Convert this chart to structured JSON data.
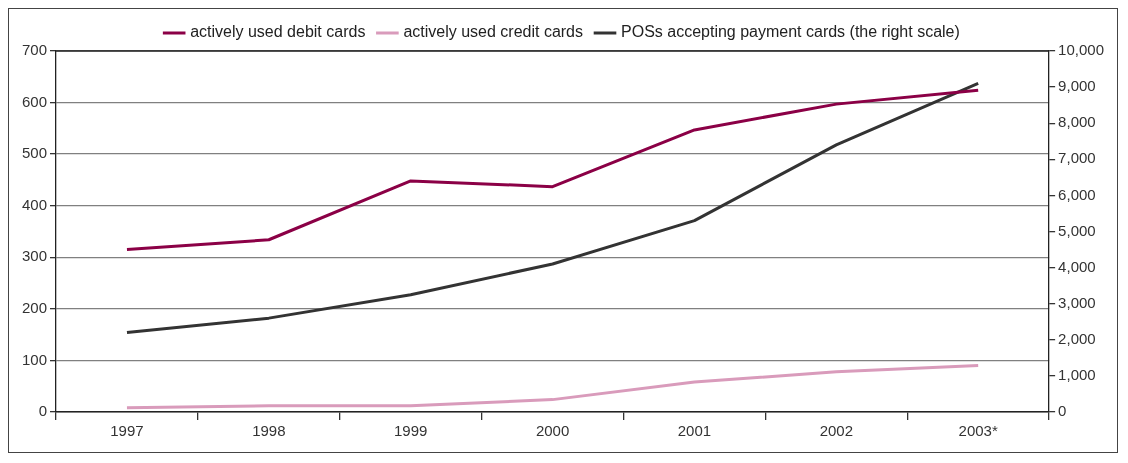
{
  "chart_data": {
    "type": "line",
    "categories": [
      "1997",
      "1998",
      "1999",
      "2000",
      "2001",
      "2002",
      "2003*"
    ],
    "series": [
      {
        "name": "actively used debit cards",
        "color": "#8b0046",
        "values": [
          315,
          334,
          448,
          437,
          547,
          597,
          624
        ]
      },
      {
        "name": "actively used credit cards",
        "color": "#d99bbb",
        "values": [
          8,
          12,
          12,
          24,
          58,
          78,
          90
        ]
      },
      {
        "name": "POSs accepting payment cards (the right scale)",
        "color": "#333333",
        "axis": "y2",
        "values": [
          2200,
          2600,
          3250,
          4100,
          5300,
          7400,
          9100
        ]
      }
    ],
    "ylim": [
      0,
      700
    ],
    "yticks": [
      0,
      100,
      200,
      300,
      400,
      500,
      600,
      700
    ],
    "y2lim": [
      0,
      10000
    ],
    "y2ticks": [
      {
        "value": 0,
        "label": "0"
      },
      {
        "value": 1000,
        "label": "1,000"
      },
      {
        "value": 2000,
        "label": "2,000"
      },
      {
        "value": 3000,
        "label": "3,000"
      },
      {
        "value": 4000,
        "label": "4,000"
      },
      {
        "value": 5000,
        "label": "5,000"
      },
      {
        "value": 6000,
        "label": "6,000"
      },
      {
        "value": 7000,
        "label": "7,000"
      },
      {
        "value": 8000,
        "label": "8,000"
      },
      {
        "value": 9000,
        "label": "9,000"
      },
      {
        "value": 10000,
        "label": "10,000"
      }
    ],
    "grid": "y",
    "legend": "top",
    "marker": "none",
    "line_style": "solid"
  }
}
